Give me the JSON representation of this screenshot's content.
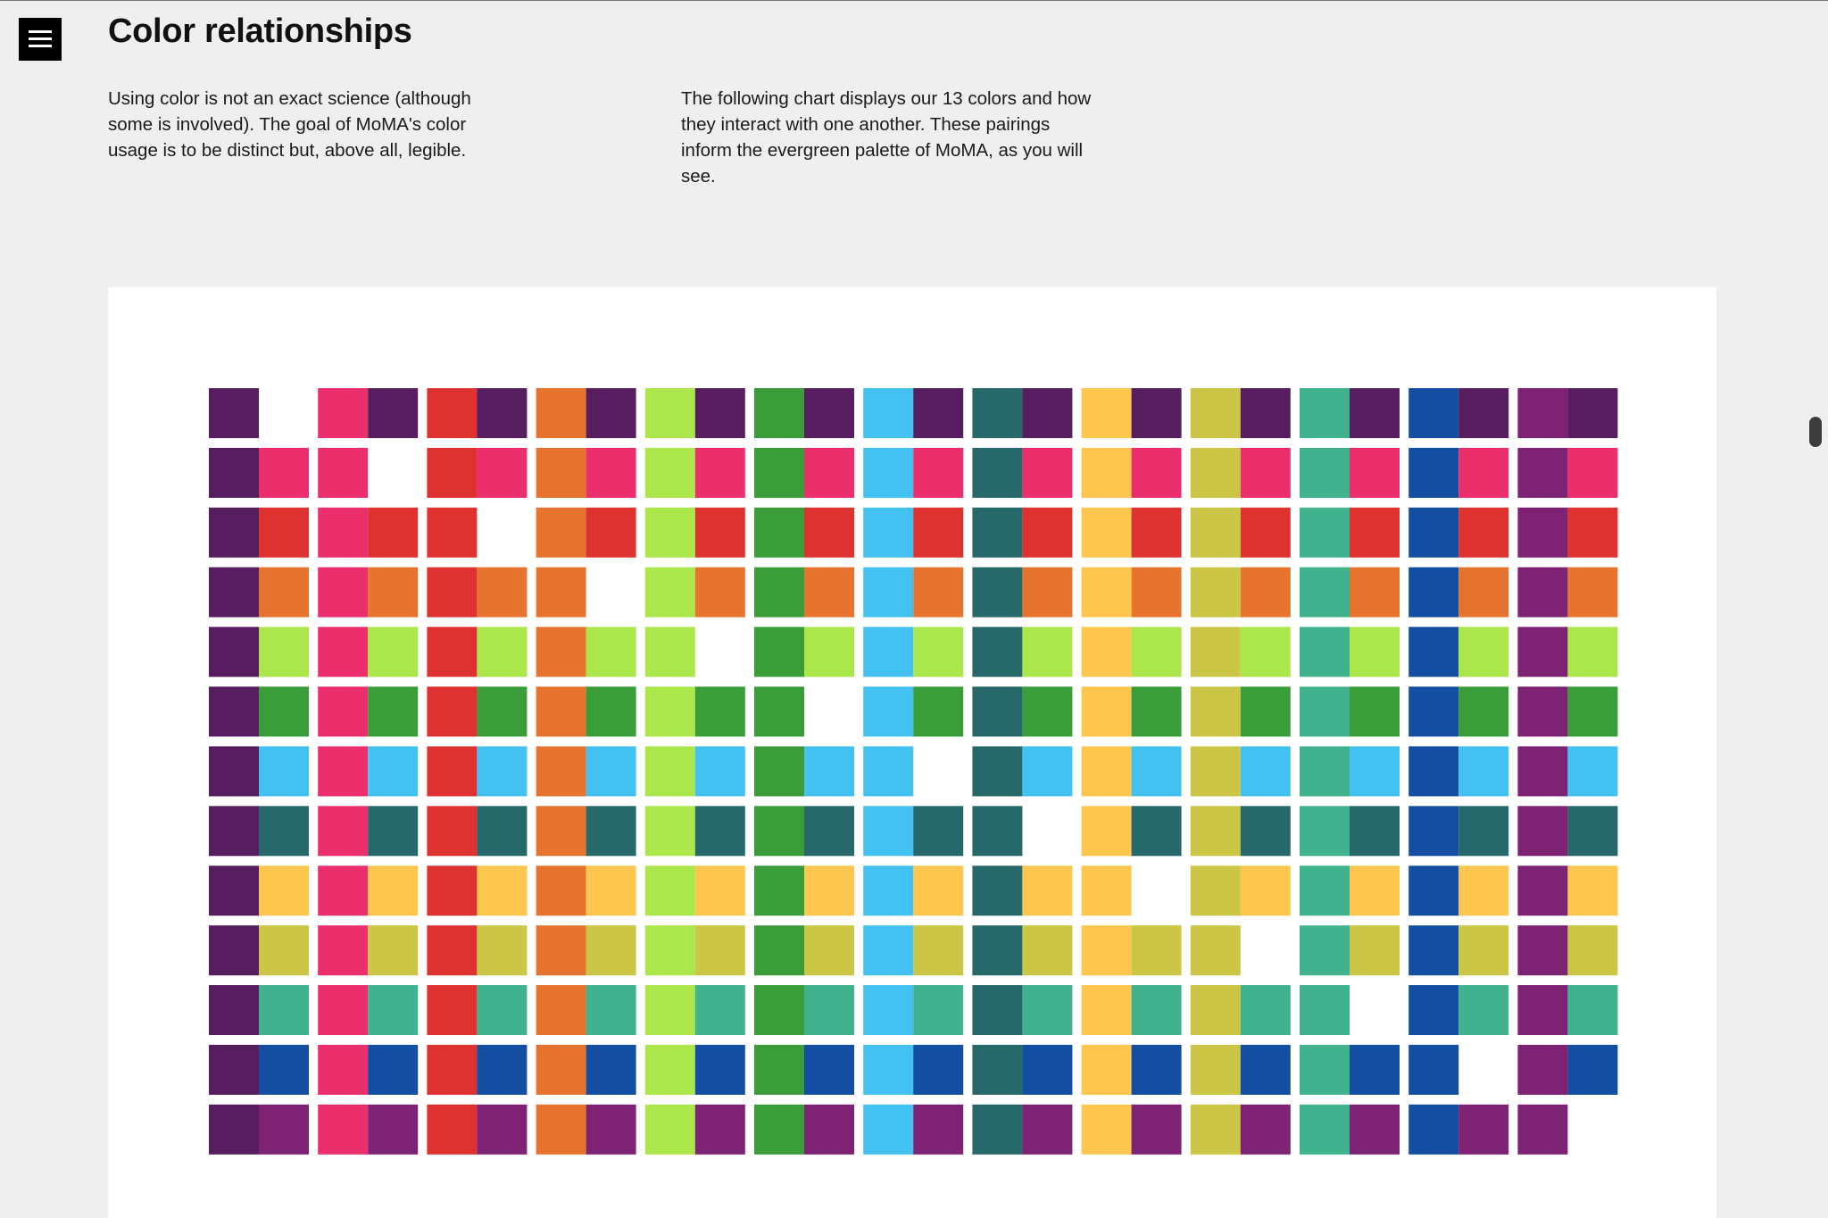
{
  "header": {
    "menu_icon": "hamburger-menu-icon",
    "title": "Color relationships"
  },
  "intro": {
    "left_paragraph": "Using color is not an exact science (although some is involved). The goal of MoMA's color usage is to be distinct but, above all, legible.",
    "right_paragraph": "The following chart displays our 13 colors and how they interact with one another. These pairings inform the evergreen palette of MoMA, as you will see."
  },
  "colors": {
    "page_background": "#efefef",
    "panel_background": "#ffffff",
    "menu_button": "#000000"
  },
  "palette": [
    "#561e5e",
    "#ea2f6c",
    "#dd3230",
    "#e6742e",
    "#abe64a",
    "#3b9d3a",
    "#43c2f2",
    "#27686b",
    "#fcc64f",
    "#cbc646",
    "#41b28e",
    "#134ea2",
    "#7e2373"
  ],
  "pairing_grid": {
    "description_rows": 13,
    "description_columns": 13,
    "cell_rule": "column = base color, row = paired color; diagonal shows base color alone"
  }
}
